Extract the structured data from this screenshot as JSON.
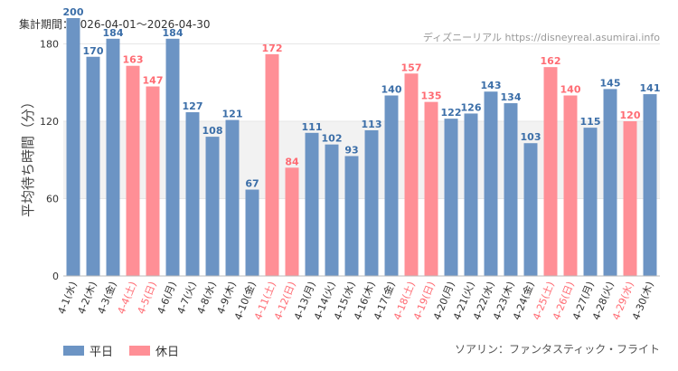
{
  "header": {
    "period": "集計期間：2026-04-01～2026-04-30",
    "credit": "ディズニーリアル https://disneyreal.asumirai.info"
  },
  "footer": {
    "attraction": "ソアリン：ファンタスティック・フライト"
  },
  "colors": {
    "weekday": "#6c94c4",
    "holiday": "#ff8f96",
    "weekday_label": "#3b6ea8",
    "holiday_label": "#ff6b73",
    "axis_label": "#333333",
    "grid": "#e6e6e6",
    "band": "#f2f2f2"
  },
  "chart_data": {
    "type": "bar",
    "ylabel": "平均待ち時間（分）",
    "ylim": [
      0,
      200
    ],
    "yticks": [
      0,
      60,
      120,
      180
    ],
    "grid": true,
    "legend_position": "bottom-left",
    "legend": [
      {
        "key": "weekday",
        "label": "平日"
      },
      {
        "key": "holiday",
        "label": "休日"
      }
    ],
    "categories": [
      "4-1(水)",
      "4-2(木)",
      "4-3(金)",
      "4-4(土)",
      "4-5(日)",
      "4-6(月)",
      "4-7(火)",
      "4-8(水)",
      "4-9(木)",
      "4-10(金)",
      "4-11(土)",
      "4-12(日)",
      "4-13(月)",
      "4-14(火)",
      "4-15(水)",
      "4-16(木)",
      "4-17(金)",
      "4-18(土)",
      "4-19(日)",
      "4-20(月)",
      "4-21(火)",
      "4-22(水)",
      "4-23(木)",
      "4-24(金)",
      "4-25(土)",
      "4-26(日)",
      "4-27(月)",
      "4-28(火)",
      "4-29(水)",
      "4-30(木)"
    ],
    "values": [
      200,
      170,
      184,
      163,
      147,
      184,
      127,
      108,
      121,
      67,
      172,
      84,
      111,
      102,
      93,
      113,
      140,
      157,
      135,
      122,
      126,
      143,
      134,
      103,
      162,
      140,
      115,
      145,
      120,
      141
    ],
    "day_type": [
      "weekday",
      "weekday",
      "weekday",
      "holiday",
      "holiday",
      "weekday",
      "weekday",
      "weekday",
      "weekday",
      "weekday",
      "holiday",
      "holiday",
      "weekday",
      "weekday",
      "weekday",
      "weekday",
      "weekday",
      "holiday",
      "holiday",
      "weekday",
      "weekday",
      "weekday",
      "weekday",
      "weekday",
      "holiday",
      "holiday",
      "weekday",
      "weekday",
      "holiday",
      "weekday"
    ]
  }
}
